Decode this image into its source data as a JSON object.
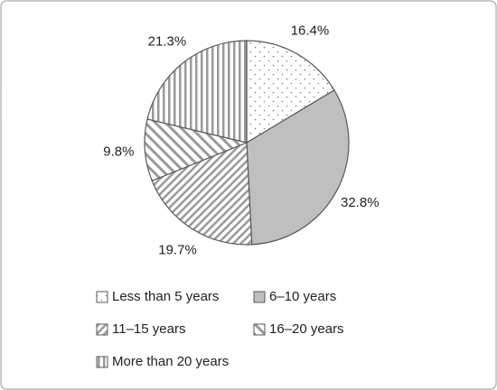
{
  "chart_data": {
    "type": "pie",
    "categories": [
      "Less than 5 years",
      "6–10 years",
      "11–15 years",
      "16–20 years",
      "More than 20 years"
    ],
    "values": [
      16.4,
      32.8,
      19.7,
      9.8,
      21.3
    ],
    "value_labels": [
      "16.4%",
      "32.8%",
      "19.7%",
      "9.8%",
      "21.3%"
    ],
    "patterns": [
      "dots",
      "solid",
      "diagonal-up",
      "diagonal-down",
      "vertical"
    ],
    "color": "#bfbfbf"
  }
}
